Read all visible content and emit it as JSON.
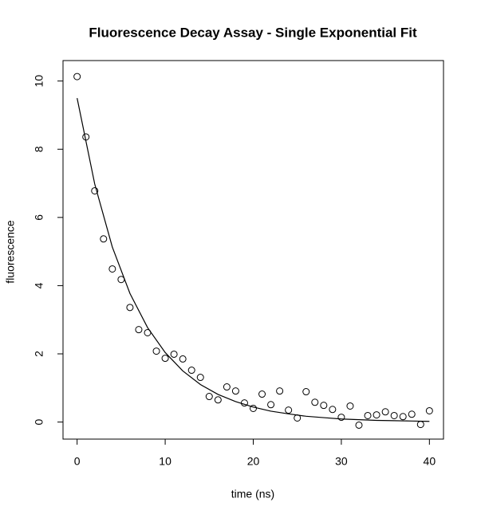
{
  "chart_data": {
    "type": "scatter",
    "title": "Fluorescence Decay Assay - Single Exponential Fit",
    "x_label": "time (ns)",
    "y_label": "fluorescence",
    "xlim": [
      -1.6,
      41.6
    ],
    "ylim": [
      -0.5,
      10.6
    ],
    "xticks": [
      0,
      10,
      20,
      30,
      40
    ],
    "yticks": [
      0,
      2,
      4,
      6,
      8,
      10
    ],
    "series": [
      {
        "type": "scatter",
        "color": "#000000",
        "x": [
          0,
          1,
          2,
          3,
          4,
          5,
          6,
          7,
          8,
          9,
          10,
          11,
          12,
          13,
          14,
          15,
          16,
          17,
          18,
          19,
          20,
          21,
          22,
          23,
          24,
          25,
          26,
          27,
          28,
          29,
          30,
          31,
          32,
          33,
          34,
          35,
          36,
          37,
          38,
          39,
          40
        ],
        "values": [
          10.13,
          8.36,
          6.78,
          5.37,
          4.49,
          4.18,
          3.36,
          2.71,
          2.62,
          2.08,
          1.87,
          1.99,
          1.85,
          1.52,
          1.31,
          0.75,
          0.65,
          1.03,
          0.91,
          0.56,
          0.4,
          0.82,
          0.51,
          0.91,
          0.35,
          0.12,
          0.89,
          0.58,
          0.49,
          0.37,
          0.14,
          0.47,
          -0.09,
          0.19,
          0.21,
          0.3,
          0.19,
          0.16,
          0.23,
          -0.07,
          0.33
        ]
      },
      {
        "type": "line",
        "color": "#000000",
        "x": [
          0,
          2,
          4,
          6,
          8,
          10,
          12,
          14,
          16,
          18,
          20,
          22,
          24,
          26,
          28,
          30,
          32,
          34,
          36,
          38,
          40
        ],
        "values": [
          9.5,
          6.98,
          5.13,
          3.77,
          2.77,
          2.04,
          1.5,
          1.1,
          0.81,
          0.6,
          0.44,
          0.32,
          0.24,
          0.17,
          0.13,
          0.09,
          0.07,
          0.05,
          0.04,
          0.03,
          0.02
        ]
      }
    ]
  }
}
